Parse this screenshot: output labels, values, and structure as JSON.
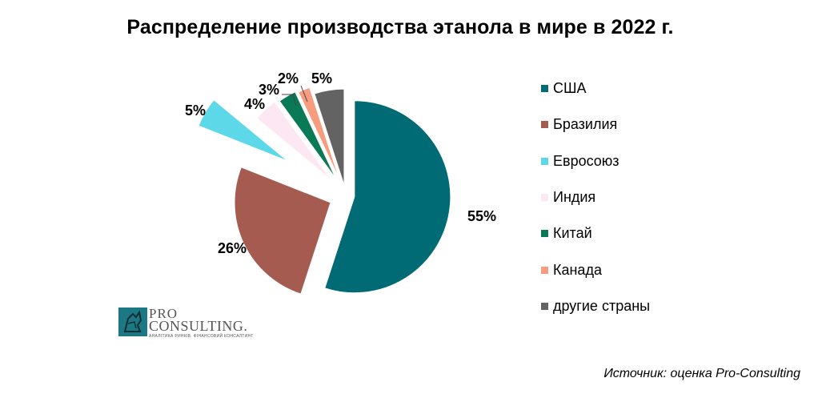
{
  "chart_data": {
    "type": "pie",
    "title": "Распределение производства этанола в мире в 2022 г.",
    "categories": [
      "США",
      "Бразилия",
      "Евросоюз",
      "Индия",
      "Китай",
      "Канада",
      "другие страны"
    ],
    "values": [
      55,
      26,
      5,
      4,
      3,
      2,
      5
    ],
    "data_labels": [
      "55%",
      "26%",
      "5%",
      "4%",
      "3%",
      "2%",
      "5%"
    ],
    "colors": [
      "#006b74",
      "#a65b50",
      "#5cd8e8",
      "#fde7f2",
      "#0a7a56",
      "#f79c7e",
      "#636363"
    ],
    "exploded": [
      true,
      true,
      true,
      true,
      true,
      true,
      true
    ],
    "start_angle_deg": 0,
    "direction": "clockwise",
    "legend_position": "right"
  },
  "logo": {
    "pro": "PRO",
    "name": "CONSULTING.",
    "tagline": "АНАЛІТИКА РИНКІВ. ФІНАНСОВИЙ КОНСАЛТИНГ"
  },
  "source": "Источник: оценка Pro-Consulting"
}
